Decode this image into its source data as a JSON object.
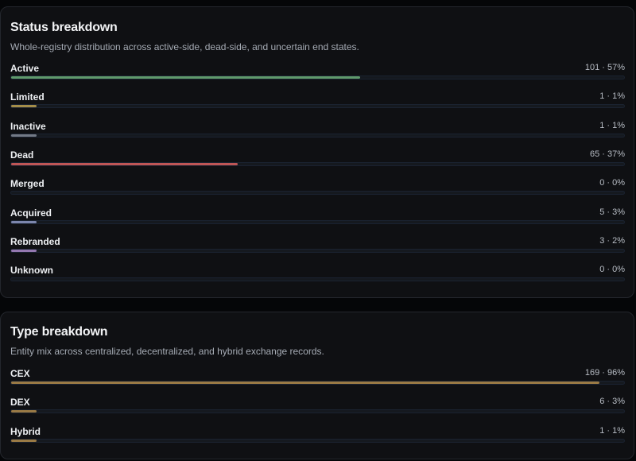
{
  "status_breakdown": {
    "title": "Status breakdown",
    "subtitle": "Whole-registry distribution across active-side, dead-side, and uncertain end states.",
    "rows": [
      {
        "label": "Active",
        "value_text": "101 · 57%",
        "fill_percent": 57,
        "color": "#5f9a6c"
      },
      {
        "label": "Limited",
        "value_text": "1 · 1%",
        "fill_percent": 1,
        "color": "#a58e4a"
      },
      {
        "label": "Inactive",
        "value_text": "1 · 1%",
        "fill_percent": 1,
        "color": "#737a86"
      },
      {
        "label": "Dead",
        "value_text": "65 · 37%",
        "fill_percent": 37,
        "color": "#bf5656"
      },
      {
        "label": "Merged",
        "value_text": "0 · 0%",
        "fill_percent": 0,
        "color": "#6a7890"
      },
      {
        "label": "Acquired",
        "value_text": "5 · 3%",
        "fill_percent": 3,
        "color": "#7c86ad"
      },
      {
        "label": "Rebranded",
        "value_text": "3 · 2%",
        "fill_percent": 2,
        "color": "#9478b0"
      },
      {
        "label": "Unknown",
        "value_text": "0 · 0%",
        "fill_percent": 0,
        "color": "#5a606b"
      }
    ]
  },
  "type_breakdown": {
    "title": "Type breakdown",
    "subtitle": "Entity mix across centralized, decentralized, and hybrid exchange records.",
    "rows": [
      {
        "label": "CEX",
        "value_text": "169 · 96%",
        "fill_percent": 96,
        "color": "#9a7a45"
      },
      {
        "label": "DEX",
        "value_text": "6 · 3%",
        "fill_percent": 3,
        "color": "#9a7a45"
      },
      {
        "label": "Hybrid",
        "value_text": "1 · 1%",
        "fill_percent": 1,
        "color": "#9a7a45"
      }
    ]
  }
}
